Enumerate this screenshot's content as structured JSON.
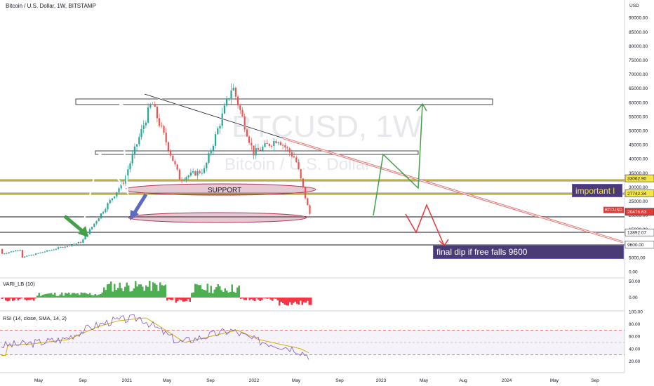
{
  "header": {
    "title": "Bitcoin / U.S. Dollar, 1W, BITSTAMP"
  },
  "watermark": {
    "symbol": "BTCUSD, 1W",
    "name": "Bitcoin / U.S. Dollar"
  },
  "price_axis": {
    "unit": "USD",
    "ticks": [
      "90000.00",
      "85000.00",
      "80000.00",
      "75000.00",
      "70000.00",
      "65000.00",
      "60000.00",
      "55000.00",
      "50000.00",
      "45000.00",
      "40000.00",
      "35000.00",
      "30000.00",
      "25000.00",
      "20000.00",
      "15000.00",
      "10000.00",
      "5000.00",
      "0.00"
    ],
    "badges": [
      {
        "label": "33062.90",
        "value": 33062.9,
        "color": "#f5e642",
        "text_color": "#131722"
      },
      {
        "label": "27742.34",
        "value": 27742.34,
        "color": "#f5e642",
        "text_color": "#131722"
      },
      {
        "label": "BTCUSD",
        "value": 20476.63,
        "color": "#e53935",
        "text_color": "#ffffff"
      },
      {
        "label": "20476.63",
        "value": 20476.63,
        "color": "#e53935",
        "text_color": "#ffffff"
      },
      {
        "label": "13892.07",
        "value": 13892.07,
        "color": "#ffffff",
        "text_color": "#131722"
      },
      {
        "label": "9600.00",
        "value": 9600,
        "color": "#ffffff",
        "text_color": "#131722"
      }
    ]
  },
  "annotations": {
    "support": "SUPPORT",
    "important": "important l",
    "final_dip": "final dip if free falls 9600"
  },
  "vari_pane": {
    "title": "VARI_LB (10)",
    "ticks": [
      "50.00",
      "0.00"
    ]
  },
  "rsi_pane": {
    "title": "RSI (14, close, SMA, 14, 2)",
    "ticks": [
      "100.00",
      "80.00",
      "60.00",
      "40.00",
      "20.00"
    ]
  },
  "time_axis": {
    "labels": [
      "May",
      "Sep",
      "2021",
      "May",
      "Sep",
      "2022",
      "May",
      "Sep",
      "2023",
      "May",
      "Aug",
      "2024",
      "May",
      "Sep"
    ]
  },
  "colors": {
    "up": "#26a69a",
    "down": "#ef5350",
    "yellow": "#f5e642",
    "vari_up": "#4caf50",
    "vari_down": "#f23645",
    "rsi": "#7e57c2",
    "rsi_ma": "#d4b106"
  },
  "chart_data": {
    "type": "candlestick",
    "x_unit": "weeks",
    "y_unit": "USD",
    "ylim": [
      0,
      95000
    ],
    "price_key": [
      {
        "date": "2020-03",
        "price": 5000
      },
      {
        "date": "2020-09",
        "price": 10500
      },
      {
        "date": "2021-01",
        "price": 32000
      },
      {
        "date": "2021-04",
        "price": 60000
      },
      {
        "date": "2021-07",
        "price": 32000
      },
      {
        "date": "2021-11",
        "price": 68000
      },
      {
        "date": "2022-01",
        "price": 40000
      },
      {
        "date": "2022-03",
        "price": 47000
      },
      {
        "date": "2022-06",
        "price": 20476.63
      }
    ],
    "horizontal_levels": [
      33062.9,
      27742.34,
      20476.63,
      13892.07,
      9600
    ],
    "zones": [
      {
        "low": 60000,
        "high": 62000
      },
      {
        "low": 42000,
        "high": 43000
      }
    ],
    "rsi_last": 29,
    "vari_last": -20
  }
}
